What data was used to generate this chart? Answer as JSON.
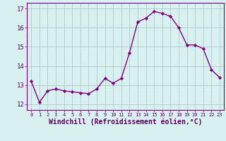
{
  "x": [
    0,
    1,
    2,
    3,
    4,
    5,
    6,
    7,
    8,
    9,
    10,
    11,
    12,
    13,
    14,
    15,
    16,
    17,
    18,
    19,
    20,
    21,
    22,
    23
  ],
  "y": [
    13.2,
    12.1,
    12.7,
    12.8,
    12.7,
    12.65,
    12.6,
    12.55,
    12.8,
    13.35,
    13.1,
    13.35,
    14.7,
    16.3,
    16.5,
    16.85,
    16.75,
    16.6,
    16.0,
    15.1,
    15.1,
    14.9,
    13.8,
    13.4
  ],
  "line_color": "#800080",
  "marker": "D",
  "marker_size": 2.2,
  "bg_color": "#d8f0f0",
  "grid_color": "#b0c8c8",
  "xlabel": "Windchill (Refroidissement éolien,°C)",
  "xlabel_fontsize": 7,
  "yticks": [
    12,
    13,
    14,
    15,
    16,
    17
  ],
  "xtick_labels": [
    "0",
    "1",
    "2",
    "3",
    "4",
    "5",
    "6",
    "7",
    "8",
    "9",
    "10",
    "11",
    "12",
    "13",
    "14",
    "15",
    "16",
    "17",
    "18",
    "19",
    "20",
    "21",
    "22",
    "23"
  ],
  "ylim": [
    11.7,
    17.3
  ],
  "xlim": [
    -0.5,
    23.5
  ],
  "spine_color": "#800080"
}
